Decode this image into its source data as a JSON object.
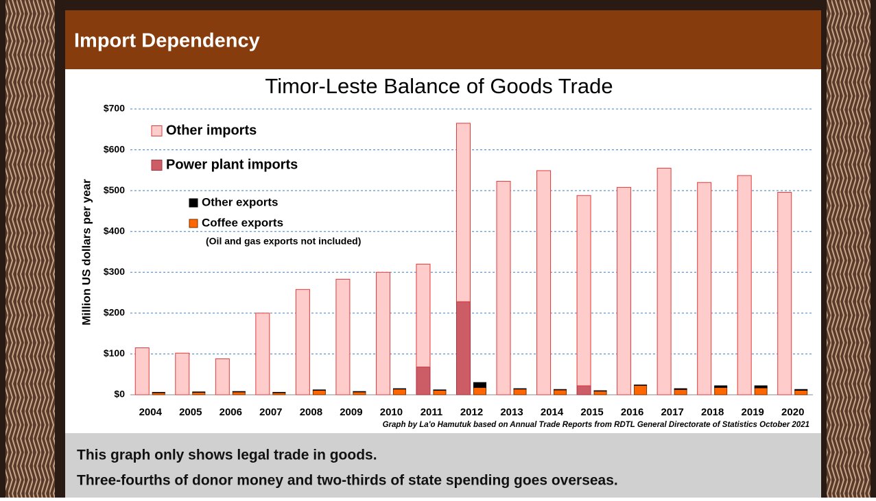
{
  "slide": {
    "heading": "Import Dependency",
    "notes": [
      "This graph only shows legal trade in goods.",
      "Three-fourths of donor money and two-thirds of state spending goes overseas."
    ]
  },
  "chart_data": {
    "type": "stacked-grouped-bar",
    "title": "Timor-Leste Balance of Goods Trade",
    "y_label": "Million US dollars per year",
    "annotation": "(Oil and gas exports not included)",
    "source": "Graph by La'o Hamutuk based on Annual Trade Reports from RDTL General Directorate of Statistics  October 2021",
    "categories": [
      "2004",
      "2005",
      "2006",
      "2007",
      "2008",
      "2009",
      "2010",
      "2011",
      "2012",
      "2013",
      "2014",
      "2015",
      "2016",
      "2017",
      "2018",
      "2019",
      "2020"
    ],
    "series": [
      {
        "name": "Other imports",
        "group": "imports",
        "color": "#ffcccc",
        "stroke": "#e03a3a",
        "values": [
          115,
          102,
          88,
          200,
          258,
          283,
          300,
          252,
          437,
          523,
          549,
          466,
          508,
          555,
          520,
          537,
          496
        ]
      },
      {
        "name": "Power plant imports",
        "group": "imports",
        "color": "#cc5c66",
        "stroke": "#b03040",
        "values": [
          0,
          0,
          0,
          0,
          0,
          0,
          0,
          68,
          228,
          0,
          0,
          22,
          0,
          0,
          0,
          0,
          0
        ]
      },
      {
        "name": "Other exports",
        "group": "exports",
        "color": "#000000",
        "stroke": "#000000",
        "values": [
          1,
          1,
          1,
          1,
          1,
          1,
          1,
          1,
          12,
          1,
          1,
          1,
          1,
          2,
          4,
          5,
          2
        ]
      },
      {
        "name": "Coffee exports",
        "group": "exports",
        "color": "#ff6600",
        "stroke": "#7a3000",
        "values": [
          5,
          6,
          7,
          5,
          11,
          7,
          14,
          11,
          18,
          14,
          12,
          9,
          23,
          13,
          18,
          17,
          11
        ]
      }
    ],
    "ylim": [
      0,
      700
    ],
    "yticks": [
      {
        "value": 0,
        "label": "$0"
      },
      {
        "value": 100,
        "label": "$100"
      },
      {
        "value": 200,
        "label": "$200"
      },
      {
        "value": 300,
        "label": "$300"
      },
      {
        "value": 400,
        "label": "$400"
      },
      {
        "value": 500,
        "label": "$500"
      },
      {
        "value": 600,
        "label": "$600"
      },
      {
        "value": 700,
        "label": "$700"
      }
    ],
    "grid": true,
    "legend": "upper-left"
  }
}
